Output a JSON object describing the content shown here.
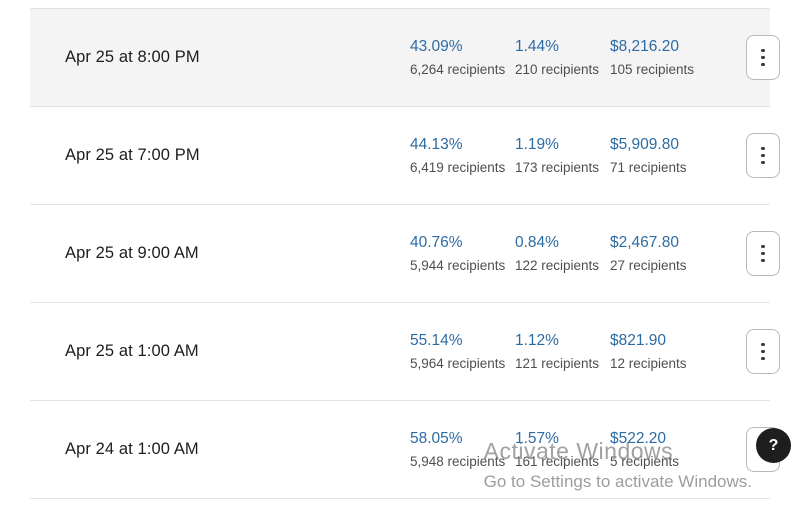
{
  "table": {
    "rows": [
      {
        "date": "Apr 25 at 8:00 PM",
        "open_rate": "43.09%",
        "open_recipients": "6,264 recipients",
        "click_rate": "1.44%",
        "click_recipients": "210 recipients",
        "revenue": "$8,216.20",
        "revenue_recipients": "105 recipients",
        "highlighted": true
      },
      {
        "date": "Apr 25 at 7:00 PM",
        "open_rate": "44.13%",
        "open_recipients": "6,419 recipients",
        "click_rate": "1.19%",
        "click_recipients": "173 recipients",
        "revenue": "$5,909.80",
        "revenue_recipients": "71 recipients",
        "highlighted": false
      },
      {
        "date": "Apr 25 at 9:00 AM",
        "open_rate": "40.76%",
        "open_recipients": "5,944 recipients",
        "click_rate": "0.84%",
        "click_recipients": "122 recipients",
        "revenue": "$2,467.80",
        "revenue_recipients": "27 recipients",
        "highlighted": false
      },
      {
        "date": "Apr 25 at 1:00 AM",
        "open_rate": "55.14%",
        "open_recipients": "5,964 recipients",
        "click_rate": "1.12%",
        "click_recipients": "121 recipients",
        "revenue": "$821.90",
        "revenue_recipients": "12 recipients",
        "highlighted": false
      },
      {
        "date": "Apr 24 at 1:00 AM",
        "open_rate": "58.05%",
        "open_recipients": "5,948 recipients",
        "click_rate": "1.57%",
        "click_recipients": "161 recipients",
        "revenue": "$522.20",
        "revenue_recipients": "5 recipients",
        "highlighted": false
      }
    ]
  },
  "watermark": {
    "line1": "Activate Windows",
    "line2": "Go to Settings to activate Windows."
  },
  "help": {
    "label": "?"
  },
  "colors": {
    "accent_blue": "#2d6ba3",
    "row_highlight": "#f4f4f4",
    "border": "#e2e2e2"
  }
}
